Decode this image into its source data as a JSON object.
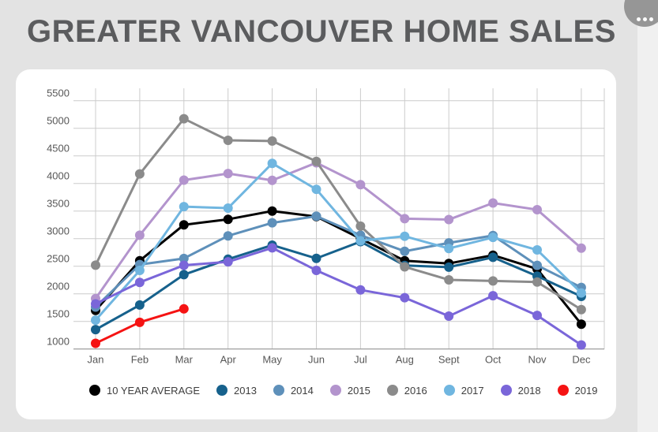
{
  "header": {
    "title": "GREATER VANCOUVER HOME SALES",
    "menu_icon": "ellipsis"
  },
  "chart_data": {
    "type": "line",
    "title": "GREATER VANCOUVER HOME SALES",
    "xlabel": "",
    "ylabel": "",
    "grid": true,
    "legend_position": "bottom",
    "ylim": [
      1000,
      5500
    ],
    "yticks": [
      1000,
      1500,
      2000,
      2500,
      3000,
      3500,
      4000,
      4500,
      5000,
      5500
    ],
    "categories": [
      "Jan",
      "Feb",
      "Mar",
      "Apr",
      "May",
      "Jun",
      "Jul",
      "Aug",
      "Sept",
      "Oct",
      "Nov",
      "Dec"
    ],
    "series": [
      {
        "name": "10 YEAR AVERAGE",
        "color": "#000000",
        "values": [
          1700,
          2600,
          3250,
          3350,
          3500,
          3400,
          3000,
          2600,
          2550,
          2700,
          2450,
          1450
        ]
      },
      {
        "name": "2013",
        "color": "#16618c",
        "values": [
          1351,
          1797,
          2347,
          2627,
          2882,
          2642,
          2946,
          2514,
          2483,
          2661,
          2321,
          1953
        ]
      },
      {
        "name": "2014",
        "color": "#5e90ba",
        "values": [
          1760,
          2530,
          2641,
          3050,
          3286,
          3406,
          3061,
          2771,
          2922,
          3057,
          2516,
          2116
        ]
      },
      {
        "name": "2015",
        "color": "#b394cd",
        "values": [
          1913,
          3061,
          4060,
          4179,
          4056,
          4375,
          3978,
          3362,
          3345,
          3646,
          3524,
          2827
        ]
      },
      {
        "name": "2016",
        "color": "#8b8b8b",
        "values": [
          2519,
          4172,
          5173,
          4781,
          4769,
          4400,
          3226,
          2489,
          2253,
          2233,
          2214,
          1714
        ]
      },
      {
        "name": "2017",
        "color": "#70b6e0",
        "values": [
          1523,
          2425,
          3579,
          3553,
          4364,
          3893,
          2960,
          3043,
          2821,
          3022,
          2795,
          2016
        ]
      },
      {
        "name": "2018",
        "color": "#7a66d9",
        "values": [
          1818,
          2207,
          2517,
          2579,
          2833,
          2425,
          2070,
          1929,
          1595,
          1966,
          1608,
          1072
        ]
      },
      {
        "name": "2019",
        "color": "#f51313",
        "values": [
          1103,
          1484,
          1727,
          null,
          null,
          null,
          null,
          null,
          null,
          null,
          null,
          null
        ]
      }
    ]
  }
}
